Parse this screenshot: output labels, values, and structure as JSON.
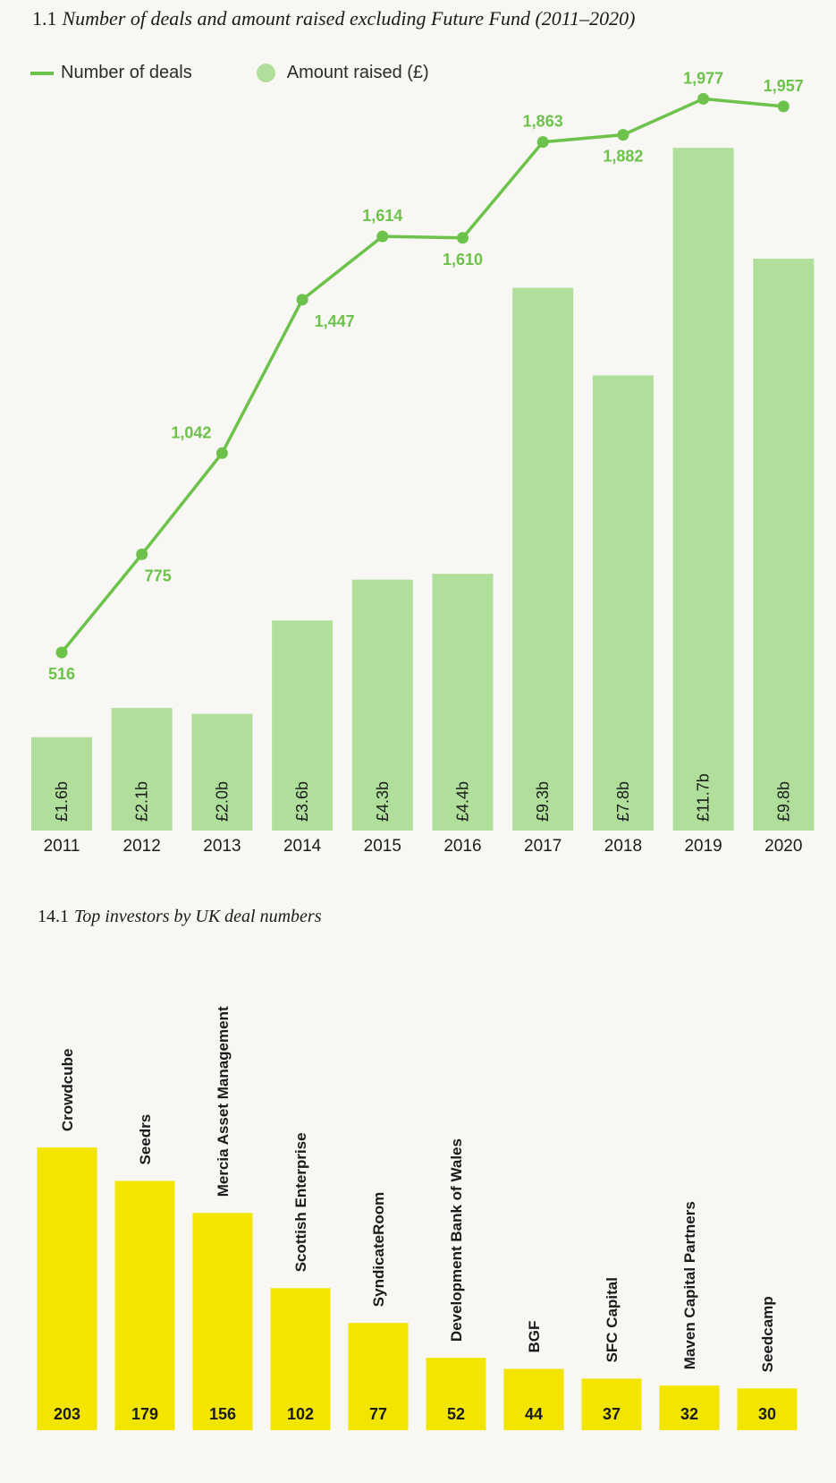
{
  "chart_data": [
    {
      "type": "bar+line",
      "title_number": "1.1",
      "title": "Number of deals and amount raised excluding Future Fund (2011–2020)",
      "legend": [
        "Number of deals",
        "Amount raised (£)"
      ],
      "legend_placement": "top-left",
      "categories": [
        "2011",
        "2012",
        "2013",
        "2014",
        "2015",
        "2016",
        "2017",
        "2018",
        "2019",
        "2020"
      ],
      "series": [
        {
          "name": "Amount raised (£)",
          "kind": "bar",
          "unit": "£ billion",
          "values": [
            1.6,
            2.1,
            2.0,
            3.6,
            4.3,
            4.4,
            9.3,
            7.8,
            11.7,
            9.8
          ],
          "labels": [
            "£1.6b",
            "£2.1b",
            "£2.0b",
            "£3.6b",
            "£4.3b",
            "£4.4b",
            "£9.3b",
            "£7.8b",
            "£11.7b",
            "£9.8b"
          ]
        },
        {
          "name": "Number of deals",
          "kind": "line",
          "values": [
            516,
            775,
            1042,
            1447,
            1614,
            1610,
            1863,
            1882,
            1977,
            1957
          ],
          "labels": [
            "516",
            "775",
            "1,042",
            "1,447",
            "1,614",
            "1,610",
            "1,863",
            "1,882",
            "1,977",
            "1,957"
          ],
          "label_positions": [
            "below",
            "below",
            "above",
            "below",
            "above",
            "below",
            "above",
            "below",
            "above",
            "above"
          ]
        }
      ],
      "grid": false,
      "colors": {
        "bar": "#b0df9c",
        "line": "#6cc24a"
      }
    },
    {
      "type": "bar",
      "title_number": "14.1",
      "title": "Top investors by UK deal numbers",
      "categories": [
        "Crowdcube",
        "Seedrs",
        "Mercia Asset Management",
        "Scottish Enterprise",
        "SyndicateRoom",
        "Development Bank of Wales",
        "BGF",
        "SFC Capital",
        "Maven Capital Partners",
        "Seedcamp"
      ],
      "values": [
        203,
        179,
        156,
        102,
        77,
        52,
        44,
        37,
        32,
        30
      ],
      "grid": false,
      "colors": {
        "bar": "#f2e500"
      }
    }
  ]
}
